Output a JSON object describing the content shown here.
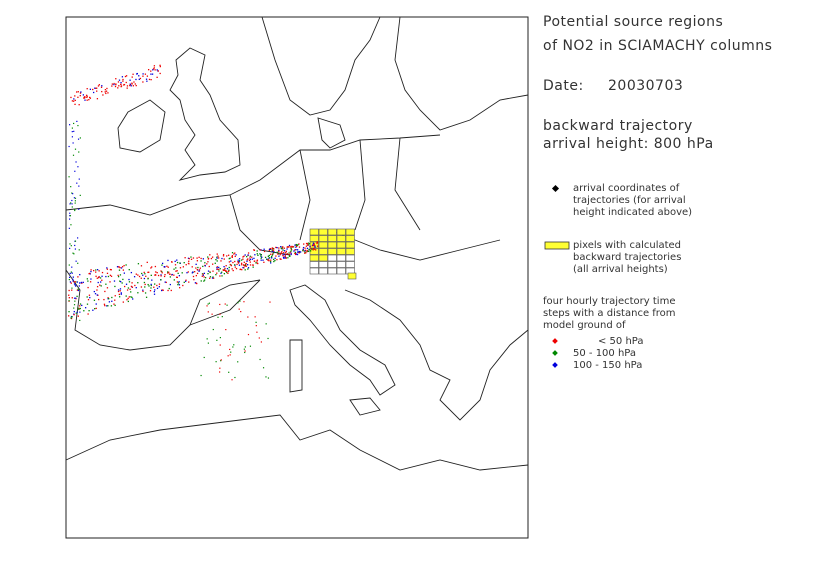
{
  "title": {
    "line1": "Potential source regions",
    "line2": "of NO2 in SCIAMACHY columns"
  },
  "date": {
    "label": "Date:",
    "value": "20030703"
  },
  "trajectory": {
    "line1": "backward trajectory",
    "line2": "arrival height: 800 hPa"
  },
  "legend": {
    "arrival": [
      "arrival coordinates of",
      "trajectories (for arrival",
      "height indicated above)"
    ],
    "pixels": [
      "pixels with calculated",
      "backward trajectories",
      "(all arrival heights)"
    ],
    "steps": [
      "four hourly trajectory time",
      "steps with a distance from",
      "model ground of"
    ],
    "levels": [
      "< 50 hPa",
      "50 - 100 hPa",
      "100 - 150 hPa"
    ]
  }
}
